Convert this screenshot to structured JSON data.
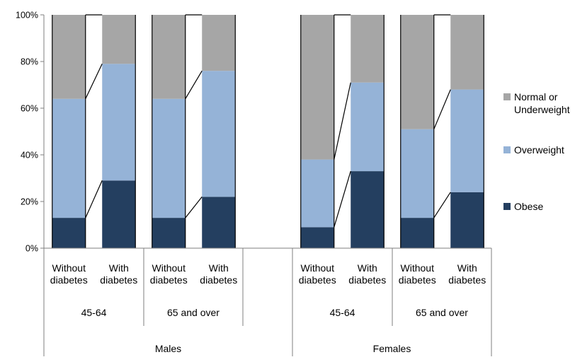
{
  "chart_data": {
    "type": "bar",
    "stacked": true,
    "normalized_percent": true,
    "ylim": [
      0,
      100
    ],
    "yticks": [
      "0%",
      "20%",
      "40%",
      "60%",
      "80%",
      "100%"
    ],
    "groups": [
      {
        "label": "Males",
        "subgroups": [
          {
            "label": "45-64",
            "bars": [
              {
                "label_line1": "Without",
                "label_line2": "diabetes",
                "obese": 13,
                "overweight": 51,
                "normal": 36
              },
              {
                "label_line1": "With",
                "label_line2": "diabetes",
                "obese": 29,
                "overweight": 50,
                "normal": 21
              }
            ]
          },
          {
            "label": "65 and over",
            "bars": [
              {
                "label_line1": "Without",
                "label_line2": "diabetes",
                "obese": 13,
                "overweight": 51,
                "normal": 36
              },
              {
                "label_line1": "With",
                "label_line2": "diabetes",
                "obese": 22,
                "overweight": 54,
                "normal": 24
              }
            ]
          }
        ]
      },
      {
        "label": "Females",
        "subgroups": [
          {
            "label": "45-64",
            "bars": [
              {
                "label_line1": "Without",
                "label_line2": "diabetes",
                "obese": 9,
                "overweight": 29,
                "normal": 62
              },
              {
                "label_line1": "With",
                "label_line2": "diabetes",
                "obese": 33,
                "overweight": 38,
                "normal": 29
              }
            ]
          },
          {
            "label": "65 and over",
            "bars": [
              {
                "label_line1": "Without",
                "label_line2": "diabetes",
                "obese": 13,
                "overweight": 38,
                "normal": 49
              },
              {
                "label_line1": "With",
                "label_line2": "diabetes",
                "obese": 24,
                "overweight": 44,
                "normal": 32
              }
            ]
          }
        ]
      }
    ],
    "series": [
      {
        "key": "normal",
        "name_line1": "Normal or",
        "name_line2": "Underweight",
        "color": "#a6a6a6"
      },
      {
        "key": "overweight",
        "name_line1": "Overweight",
        "name_line2": "",
        "color": "#95b3d7"
      },
      {
        "key": "obese",
        "name_line1": "Obese",
        "name_line2": "",
        "color": "#243f60"
      }
    ],
    "legend_position": "right",
    "grid": false
  }
}
